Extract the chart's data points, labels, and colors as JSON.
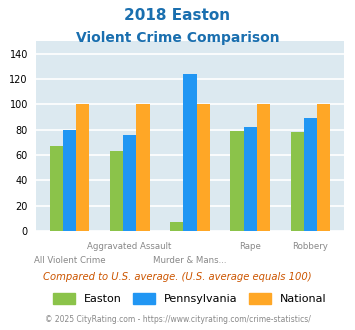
{
  "title_line1": "2018 Easton",
  "title_line2": "Violent Crime Comparison",
  "title_color": "#1a6faf",
  "groups": [
    "All Violent Crime",
    "Aggravated Assault",
    "Murder & Mans...",
    "Rape",
    "Robbery"
  ],
  "easton": [
    67,
    63,
    7,
    79,
    78
  ],
  "pennsylvania": [
    80,
    76,
    124,
    82,
    89
  ],
  "national": [
    100,
    100,
    100,
    100,
    100
  ],
  "color_easton": "#8bc34a",
  "color_pennsylvania": "#2196f3",
  "color_national": "#ffa726",
  "ylim": [
    0,
    150
  ],
  "yticks": [
    0,
    20,
    40,
    60,
    80,
    100,
    120,
    140
  ],
  "bg_color": "#dce9f0",
  "grid_color": "#ffffff",
  "note": "Compared to U.S. average. (U.S. average equals 100)",
  "note_color": "#cc5500",
  "footer": "© 2025 CityRating.com - https://www.cityrating.com/crime-statistics/",
  "footer_color": "#888888",
  "legend_labels": [
    "Easton",
    "Pennsylvania",
    "National"
  ],
  "bar_width": 0.22
}
